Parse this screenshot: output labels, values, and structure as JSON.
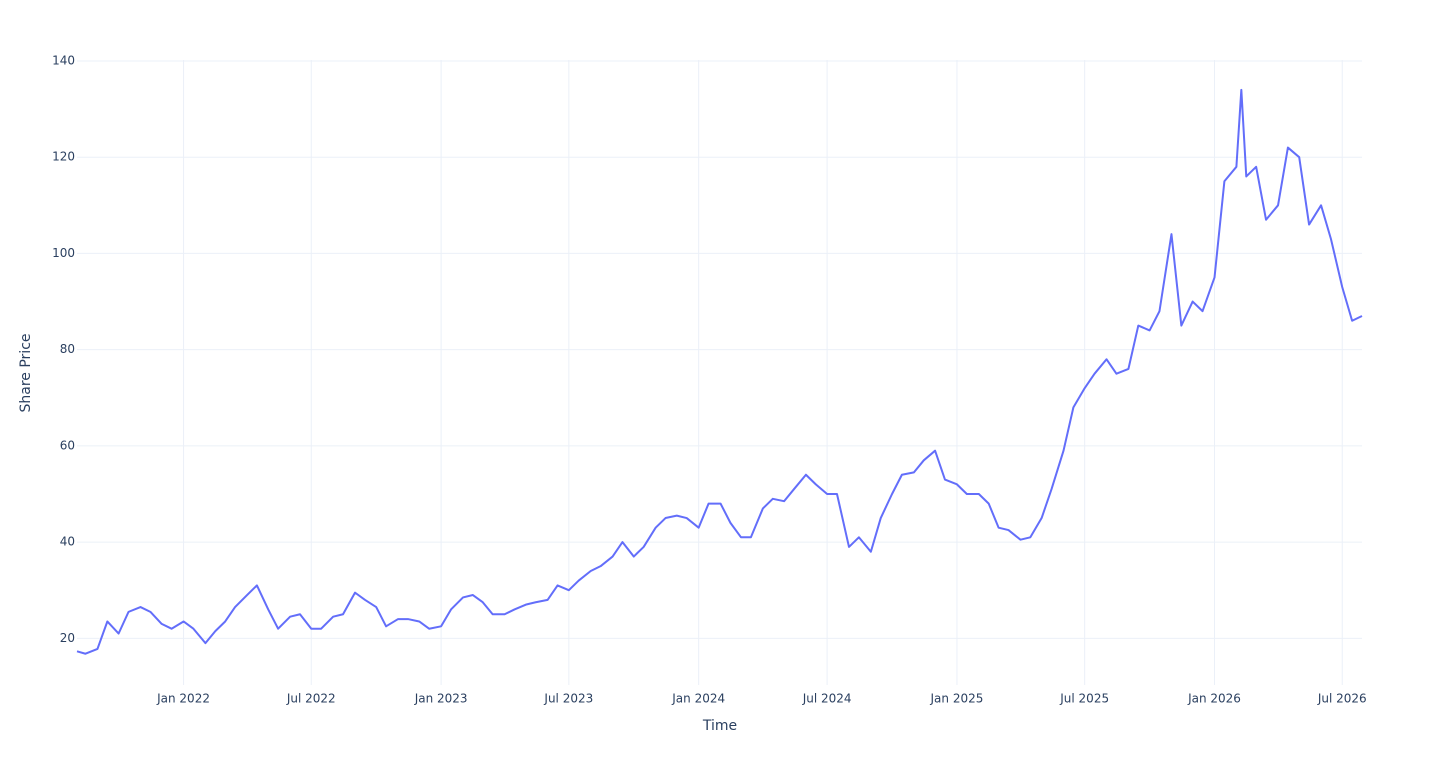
{
  "chart_data": {
    "type": "line",
    "xlabel": "Time",
    "ylabel": "Share Price",
    "x": [
      "2021-08-03",
      "2021-08-15",
      "2021-09-01",
      "2021-09-15",
      "2021-10-01",
      "2021-10-15",
      "2021-11-01",
      "2021-11-15",
      "2021-12-01",
      "2021-12-15",
      "2022-01-01",
      "2022-01-15",
      "2022-02-01",
      "2022-02-15",
      "2022-03-01",
      "2022-03-15",
      "2022-04-01",
      "2022-04-15",
      "2022-05-01",
      "2022-05-15",
      "2022-06-01",
      "2022-06-15",
      "2022-07-01",
      "2022-07-15",
      "2022-08-01",
      "2022-08-15",
      "2022-09-01",
      "2022-09-15",
      "2022-10-01",
      "2022-10-15",
      "2022-11-01",
      "2022-11-15",
      "2022-12-01",
      "2022-12-15",
      "2023-01-01",
      "2023-01-15",
      "2023-02-01",
      "2023-02-15",
      "2023-03-01",
      "2023-03-15",
      "2023-04-01",
      "2023-04-15",
      "2023-05-01",
      "2023-05-15",
      "2023-06-01",
      "2023-06-15",
      "2023-07-01",
      "2023-07-15",
      "2023-08-01",
      "2023-08-15",
      "2023-09-01",
      "2023-09-15",
      "2023-10-01",
      "2023-10-15",
      "2023-11-01",
      "2023-11-15",
      "2023-12-01",
      "2023-12-15",
      "2024-01-01",
      "2024-01-15",
      "2024-02-01",
      "2024-02-15",
      "2024-03-01",
      "2024-03-15",
      "2024-04-01",
      "2024-04-15",
      "2024-05-01",
      "2024-05-15",
      "2024-06-01",
      "2024-06-15",
      "2024-07-01",
      "2024-07-15",
      "2024-08-01",
      "2024-08-15",
      "2024-09-01",
      "2024-09-15",
      "2024-10-01",
      "2024-10-15",
      "2024-11-01",
      "2024-11-15",
      "2024-12-01",
      "2024-12-15",
      "2025-01-01",
      "2025-01-15",
      "2025-02-01",
      "2025-02-15",
      "2025-03-01",
      "2025-03-15",
      "2025-04-01",
      "2025-04-15",
      "2025-05-01",
      "2025-05-15",
      "2025-06-01",
      "2025-06-15",
      "2025-07-01",
      "2025-07-15",
      "2025-08-01",
      "2025-08-15",
      "2025-09-01",
      "2025-09-15",
      "2025-10-01",
      "2025-10-15",
      "2025-11-01",
      "2025-11-15",
      "2025-12-01",
      "2025-12-15",
      "2026-01-01",
      "2026-01-15",
      "2026-02-01",
      "2026-02-08",
      "2026-02-15",
      "2026-03-01",
      "2026-03-15",
      "2026-04-01",
      "2026-04-15",
      "2026-05-01",
      "2026-05-15",
      "2026-06-01",
      "2026-06-15",
      "2026-07-01",
      "2026-07-15",
      "2026-07-29"
    ],
    "series": [
      {
        "name": "Share Price",
        "color": "#636efa",
        "values": [
          17.3,
          16.8,
          17.8,
          23.5,
          21.0,
          25.5,
          26.5,
          25.5,
          23,
          22,
          23.5,
          22,
          19,
          21.5,
          23.5,
          26.5,
          29,
          31,
          26,
          22,
          24.5,
          25,
          22,
          22,
          24.5,
          25,
          29.5,
          28,
          26.5,
          22.5,
          24,
          24,
          23.5,
          22,
          22.5,
          26,
          28.5,
          29,
          27.5,
          25,
          25,
          26,
          27,
          27.5,
          28,
          31,
          30,
          32,
          34,
          35,
          37,
          40,
          37,
          39,
          43,
          45,
          45.5,
          45,
          43,
          48,
          48,
          44,
          41,
          41,
          47,
          49,
          48.5,
          51,
          54,
          52,
          50,
          50,
          39,
          41,
          38,
          45,
          50,
          54,
          54.5,
          57,
          59,
          53,
          52,
          50,
          50,
          48,
          43,
          42.5,
          40.5,
          41,
          45,
          51,
          59,
          68,
          72,
          75,
          78,
          75,
          76,
          85,
          84,
          88,
          104,
          85,
          90,
          88,
          95,
          115,
          118,
          134,
          116,
          118,
          107,
          110,
          122,
          120,
          106,
          110,
          103,
          93,
          86,
          87
        ]
      }
    ],
    "xlim": [
      "2021-08-03",
      "2026-07-29"
    ],
    "xticks": [
      {
        "value": "2022-01-01",
        "label": "Jan 2022"
      },
      {
        "value": "2022-07-01",
        "label": "Jul 2022"
      },
      {
        "value": "2023-01-01",
        "label": "Jan 2023"
      },
      {
        "value": "2023-07-01",
        "label": "Jul 2023"
      },
      {
        "value": "2024-01-01",
        "label": "Jan 2024"
      },
      {
        "value": "2024-07-01",
        "label": "Jul 2024"
      },
      {
        "value": "2025-01-01",
        "label": "Jan 2025"
      },
      {
        "value": "2025-07-01",
        "label": "Jul 2025"
      },
      {
        "value": "2026-01-01",
        "label": "Jan 2026"
      },
      {
        "value": "2026-07-01",
        "label": "Jul 2026"
      }
    ],
    "ylim": [
      10.3,
      140.2
    ],
    "yticks": [
      20,
      40,
      60,
      80,
      100,
      120,
      140
    ],
    "grid": true
  }
}
